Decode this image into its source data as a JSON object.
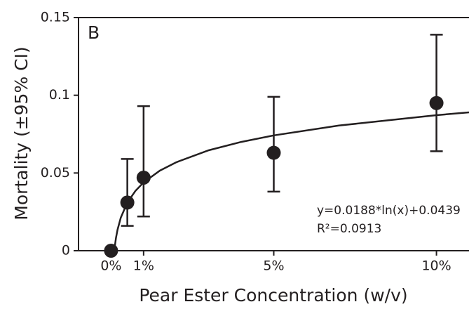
{
  "chart_data": {
    "type": "scatter",
    "panel_label": "B",
    "x_label": "Pear Ester Concentration (w/v)",
    "y_label": "Mortality (±95% CI)",
    "equation": "y=0.0188*ln(x)+0.0439",
    "r_squared": "R²=0.0913",
    "x": [
      0,
      0.5,
      1,
      5,
      10
    ],
    "values": [
      0,
      0.031,
      0.047,
      0.063,
      0.095
    ],
    "lower": [
      0,
      0.016,
      0.022,
      0.038,
      0.064
    ],
    "upper": [
      0,
      0.059,
      0.093,
      0.099,
      0.139
    ],
    "color": "#231f20",
    "fit": {
      "x": [
        0.1,
        0.15,
        0.2,
        0.3,
        0.5,
        0.75,
        1,
        1.5,
        2,
        3,
        4,
        5,
        7,
        10,
        11
      ],
      "values": [
        0.0006,
        0.0082,
        0.0136,
        0.0213,
        0.0309,
        0.0385,
        0.0439,
        0.0515,
        0.0569,
        0.0646,
        0.07,
        0.0742,
        0.0805,
        0.0872,
        0.089
      ]
    },
    "xlim": [
      -1,
      11
    ],
    "ylim": [
      0,
      0.15
    ],
    "xticks": [
      {
        "value": 0,
        "label": "0%"
      },
      {
        "value": 1,
        "label": "1%"
      },
      {
        "value": 5,
        "label": "5%"
      },
      {
        "value": 10,
        "label": "10%"
      }
    ],
    "yticks": [
      0,
      0.05,
      0.1,
      0.15
    ]
  }
}
